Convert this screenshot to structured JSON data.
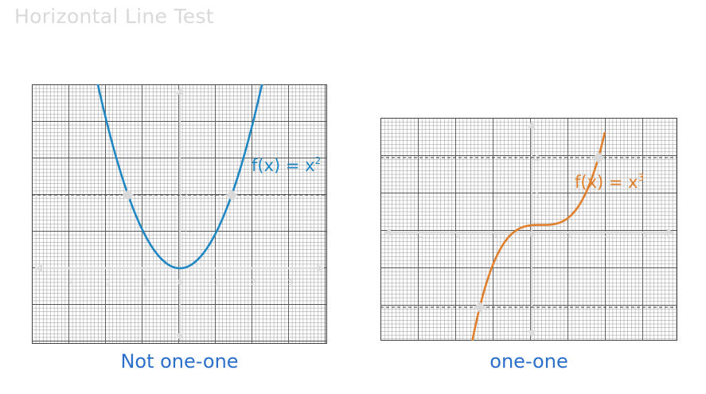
{
  "title": "Horizontal Line Test",
  "colors": {
    "title": "#d9d9d9",
    "caption": "#2b6fcb",
    "parabola": "#1f87c4",
    "cubic": "#e07f2c",
    "marker": "#d9d9d9",
    "grid_minor": "#9a9a9a",
    "grid_major": "#555555",
    "axis": "#dcdcdc"
  },
  "panels": [
    {
      "caption": "Not one-one",
      "function_label": {
        "base": "f(x) = x",
        "exponent": "2"
      },
      "curve": "y = x^2",
      "horizontal_line_y": 2,
      "intersections": 2,
      "x_ticks": [
        "-4",
        "-2",
        "-1",
        "0",
        "1",
        "2",
        "3"
      ],
      "y_ticks": [
        "2",
        "1"
      ],
      "x_range": [
        -4,
        4
      ],
      "y_range": [
        -1.9,
        5
      ]
    },
    {
      "caption": "one-one",
      "function_label": {
        "base": "f(x) = x",
        "exponent": "3"
      },
      "curve": "y = x^3",
      "horizontal_line_y": [
        2,
        -2
      ],
      "intersections": 1,
      "x_ticks": [
        "-3",
        "-2",
        "-1",
        "0",
        "1",
        "2",
        "3"
      ],
      "y_ticks": [
        "2",
        "1"
      ],
      "x_range": [
        -4,
        3.9
      ],
      "y_range": [
        -2.7,
        3.3
      ]
    }
  ]
}
